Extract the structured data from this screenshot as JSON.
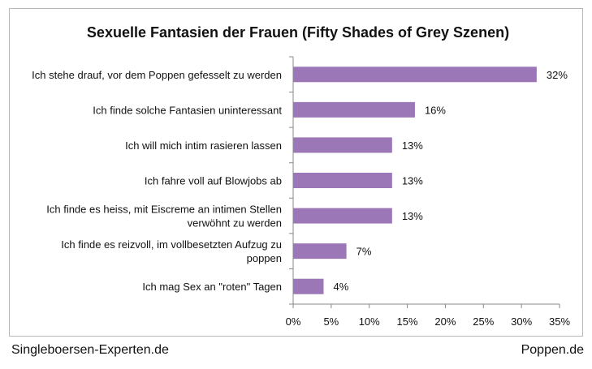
{
  "chart_data": {
    "type": "bar",
    "orientation": "horizontal",
    "title": "Sexuelle Fantasien der Frauen (Fifty Shades of Grey Szenen)",
    "xlabel": "",
    "ylabel": "",
    "categories": [
      [
        "Ich stehe drauf, vor dem Poppen gefesselt zu werden"
      ],
      [
        "Ich finde solche Fantasien uninteressant"
      ],
      [
        "Ich will mich intim rasieren lassen"
      ],
      [
        "Ich fahre voll auf Blowjobs ab"
      ],
      [
        "Ich finde es heiss, mit Eiscreme an intimen Stellen",
        "verwöhnt zu werden"
      ],
      [
        "Ich finde es reizvoll, im vollbesetzten Aufzug zu",
        "poppen"
      ],
      [
        "Ich mag Sex an \"roten\" Tagen"
      ]
    ],
    "values": [
      32,
      16,
      13,
      13,
      13,
      7,
      4
    ],
    "data_labels": [
      "32%",
      "16%",
      "13%",
      "13%",
      "13%",
      "7%",
      "4%"
    ],
    "xlim": [
      0,
      35
    ],
    "x_ticks": [
      "0%",
      "5%",
      "10%",
      "15%",
      "20%",
      "25%",
      "30%",
      "35%"
    ],
    "grid": false,
    "legend": "none",
    "bar_color": "#9b77b8"
  },
  "footer": {
    "left": "Singleboersen-Experten.de",
    "right": "Poppen.de"
  }
}
